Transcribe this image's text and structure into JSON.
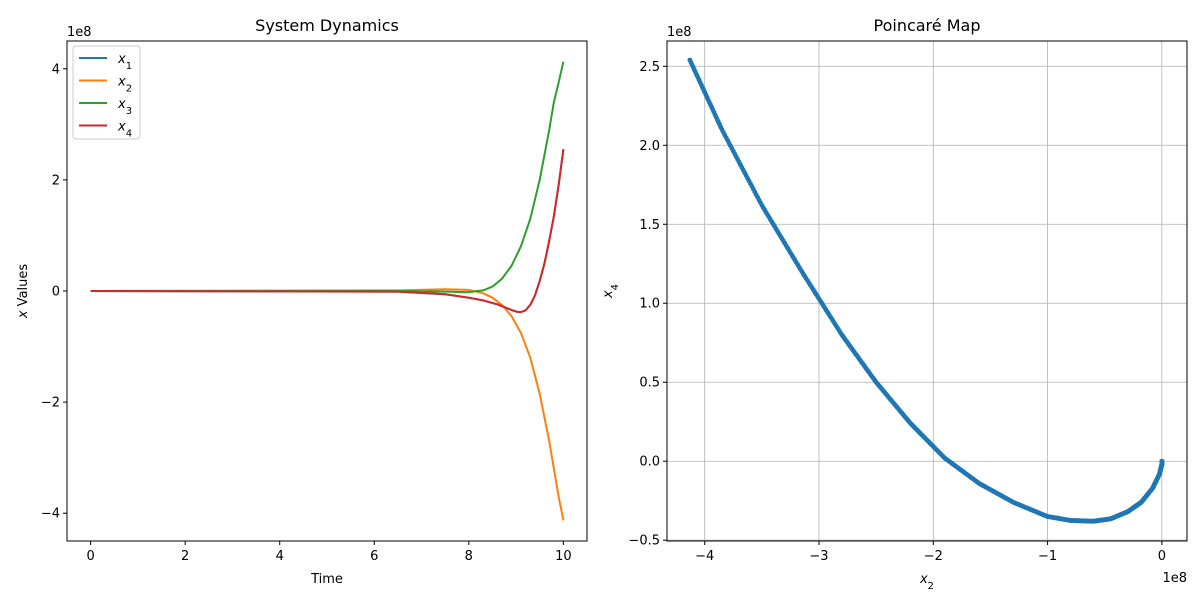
{
  "chart_data": [
    {
      "type": "line",
      "title": "System Dynamics",
      "xlabel": "Time",
      "ylabel": "x Values",
      "ylabel_var": "x",
      "ylabel_rest": " Values",
      "y_multiplier": "1e8",
      "xlim": [
        -0.5,
        10.5
      ],
      "ylim": [
        -4.5,
        4.5
      ],
      "x_ticks": [
        0,
        2,
        4,
        6,
        8,
        10
      ],
      "x_tick_labels": [
        "0",
        "2",
        "4",
        "6",
        "8",
        "10"
      ],
      "y_ticks": [
        -4,
        -2,
        0,
        2,
        4
      ],
      "y_tick_labels": [
        "−4",
        "−2",
        "0",
        "2",
        "4"
      ],
      "grid": false,
      "legend_position": "top-left",
      "series": [
        {
          "name": "x1",
          "label_var": "x",
          "label_sub": "1",
          "color": "#1f77b4",
          "x": [
            0,
            6.5,
            7.5,
            8.0,
            8.3,
            8.6,
            8.9,
            9.0,
            9.1,
            9.2,
            9.3,
            9.4,
            9.5,
            9.6,
            9.7,
            9.8,
            9.9,
            10.0
          ],
          "y": [
            0,
            -0.01,
            -0.06,
            -0.12,
            -0.17,
            -0.24,
            -0.34,
            -0.37,
            -0.38,
            -0.35,
            -0.25,
            -0.08,
            0.18,
            0.5,
            0.9,
            1.35,
            1.9,
            2.55
          ]
        },
        {
          "name": "x2",
          "label_var": "x",
          "label_sub": "2",
          "color": "#ff7f0e",
          "x": [
            0,
            6.5,
            7.5,
            8.0,
            8.3,
            8.5,
            8.7,
            8.9,
            9.1,
            9.3,
            9.5,
            9.7,
            9.8,
            9.9,
            10.0
          ],
          "y": [
            0,
            0.01,
            0.03,
            0.02,
            -0.04,
            -0.12,
            -0.25,
            -0.45,
            -0.75,
            -1.2,
            -1.85,
            -2.7,
            -3.2,
            -3.7,
            -4.13
          ]
        },
        {
          "name": "x3",
          "label_var": "x",
          "label_sub": "3",
          "color": "#2ca02c",
          "x": [
            0,
            6.5,
            7.5,
            8.0,
            8.3,
            8.5,
            8.7,
            8.9,
            9.1,
            9.3,
            9.5,
            9.7,
            9.8,
            9.9,
            10.0
          ],
          "y": [
            0,
            0.0,
            -0.01,
            -0.02,
            0.01,
            0.08,
            0.22,
            0.45,
            0.8,
            1.3,
            2.0,
            2.9,
            3.4,
            3.75,
            4.13
          ]
        },
        {
          "name": "x4",
          "label_var": "x",
          "label_sub": "4",
          "color": "#d62728",
          "x": [
            0,
            6.5,
            7.5,
            8.0,
            8.3,
            8.6,
            8.9,
            9.0,
            9.1,
            9.2,
            9.3,
            9.4,
            9.5,
            9.6,
            9.7,
            9.8,
            9.9,
            10.0
          ],
          "y": [
            0,
            -0.01,
            -0.06,
            -0.12,
            -0.17,
            -0.24,
            -0.34,
            -0.37,
            -0.38,
            -0.35,
            -0.25,
            -0.08,
            0.18,
            0.5,
            0.9,
            1.35,
            1.9,
            2.55
          ]
        }
      ]
    },
    {
      "type": "scatter",
      "title": "Poincaré Map",
      "xlabel_var": "x",
      "xlabel_sub": "2",
      "ylabel_var": "x",
      "ylabel_sub": "4",
      "x_multiplier": "1e8",
      "y_multiplier": "1e8",
      "xlim": [
        -4.33,
        0.22
      ],
      "ylim": [
        -0.505,
        2.66
      ],
      "x_ticks": [
        -4,
        -3,
        -2,
        -1,
        0
      ],
      "x_tick_labels": [
        "−4",
        "−3",
        "−2",
        "−1",
        "0"
      ],
      "y_ticks": [
        -0.5,
        0.0,
        0.5,
        1.0,
        1.5,
        2.0,
        2.5
      ],
      "y_tick_labels": [
        "−0.5",
        "0.0",
        "0.5",
        "1.0",
        "1.5",
        "2.0",
        "2.5"
      ],
      "grid": true,
      "color": "#1f77b4",
      "trace": {
        "x": [
          -4.13,
          -3.85,
          -3.5,
          -3.15,
          -2.8,
          -2.5,
          -2.2,
          -1.9,
          -1.6,
          -1.3,
          -1.0,
          -0.8,
          -0.6,
          -0.45,
          -0.3,
          -0.18,
          -0.08,
          -0.02,
          0.0,
          0.0
        ],
        "y": [
          2.54,
          2.1,
          1.62,
          1.2,
          0.8,
          0.5,
          0.24,
          0.02,
          -0.14,
          -0.26,
          -0.35,
          -0.375,
          -0.38,
          -0.365,
          -0.32,
          -0.26,
          -0.17,
          -0.08,
          -0.02,
          0.0
        ]
      }
    }
  ]
}
